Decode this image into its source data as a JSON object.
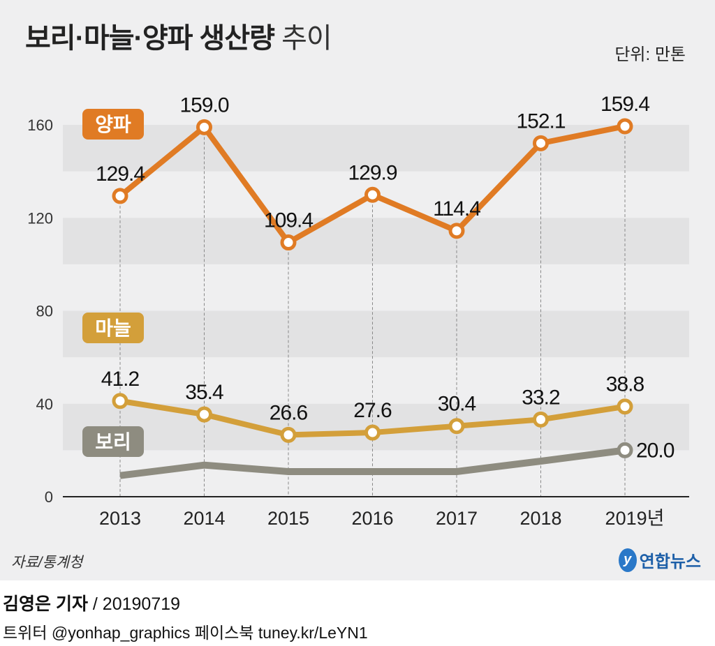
{
  "title": {
    "main": "보리·마늘·양파 생산량",
    "suffix": "추이"
  },
  "unit": "단위: 만톤",
  "source": "자료/통계청",
  "logo": "연합뉴스",
  "byline": {
    "author": "김영은 기자",
    "date": "/ 20190719"
  },
  "social": "트위터 @yonhap_graphics  페이스북 tuney.kr/LeYN1",
  "chart_data": {
    "type": "line",
    "categories": [
      "2013",
      "2014",
      "2015",
      "2016",
      "2017",
      "2018",
      "2019년"
    ],
    "ylim": [
      0,
      160
    ],
    "yticks": [
      0,
      40,
      80,
      120,
      160
    ],
    "grid": "horizontal bands",
    "series": [
      {
        "name": "양파",
        "color": "#e07b24",
        "values": [
          129.4,
          159.0,
          109.4,
          129.9,
          114.4,
          152.1,
          159.4
        ],
        "labels": [
          "129.4",
          "159.0",
          "109.4",
          "129.9",
          "114.4",
          "152.1",
          "159.4"
        ]
      },
      {
        "name": "마늘",
        "color": "#d39f3a",
        "values": [
          41.2,
          35.4,
          26.6,
          27.6,
          30.4,
          33.2,
          38.8
        ],
        "labels": [
          "41.2",
          "35.4",
          "26.6",
          "27.6",
          "30.4",
          "33.2",
          "38.8"
        ]
      },
      {
        "name": "보리",
        "color": "#8e8c80",
        "values": [
          9.1,
          13.6,
          10.8,
          10.8,
          10.8,
          15.3,
          20.0
        ],
        "labels": [
          null,
          null,
          null,
          null,
          null,
          null,
          "20.0"
        ]
      }
    ]
  }
}
